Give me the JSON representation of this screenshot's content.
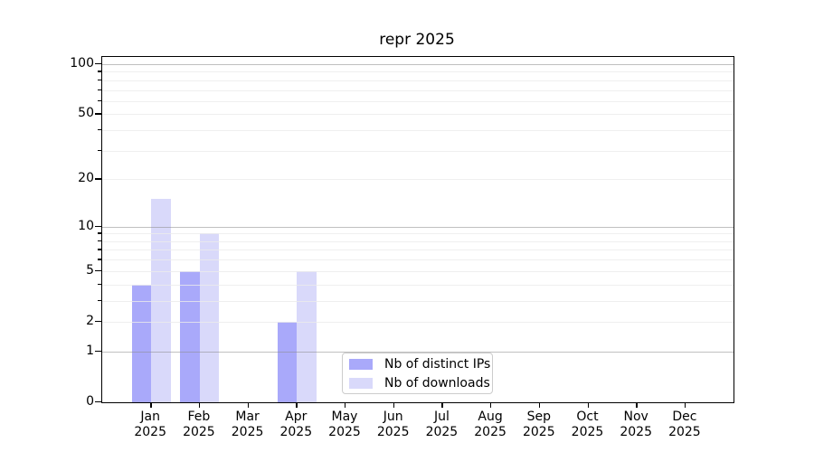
{
  "title": "repr 2025",
  "chart_data": {
    "type": "bar",
    "title": "repr 2025",
    "xlabel": "",
    "ylabel": "",
    "yscale": "log1p",
    "ylim": [
      0,
      110
    ],
    "grid": true,
    "legend_position": "lower center inside plot",
    "categories": [
      "Jan",
      "Feb",
      "Mar",
      "Apr",
      "May",
      "Jun",
      "Jul",
      "Aug",
      "Sep",
      "Oct",
      "Nov",
      "Dec"
    ],
    "category_year_line": "2025",
    "series": [
      {
        "name": "Nb of distinct IPs",
        "color": "#a9a9fa",
        "values": [
          4,
          5,
          0,
          2,
          0,
          0,
          0,
          0,
          0,
          0,
          0,
          0
        ]
      },
      {
        "name": "Nb of downloads",
        "color": "#d9d9fa",
        "values": [
          15,
          9,
          0,
          5,
          0,
          0,
          0,
          0,
          0,
          0,
          0,
          0
        ]
      }
    ],
    "y_tick_labels": [
      0,
      1,
      2,
      5,
      10,
      20,
      50,
      100
    ],
    "y_major_gridlines": [
      1,
      10,
      100
    ],
    "y_minor_gridlines": [
      2,
      3,
      4,
      5,
      6,
      7,
      8,
      9,
      20,
      30,
      40,
      50,
      60,
      70,
      80,
      90
    ]
  },
  "legend": {
    "items": [
      {
        "label": "Nb of distinct IPs",
        "color": "#a9a9fa"
      },
      {
        "label": "Nb of downloads",
        "color": "#d9d9fa"
      }
    ]
  },
  "colors": {
    "axis": "#000000",
    "background": "#ffffff",
    "grid_minor": "#ebebeb",
    "grid_major": "#8c8c8c",
    "legend_border": "#cccccc",
    "bar_distinct_ips": "#a9a9fa",
    "bar_downloads": "#d9d9fa"
  }
}
